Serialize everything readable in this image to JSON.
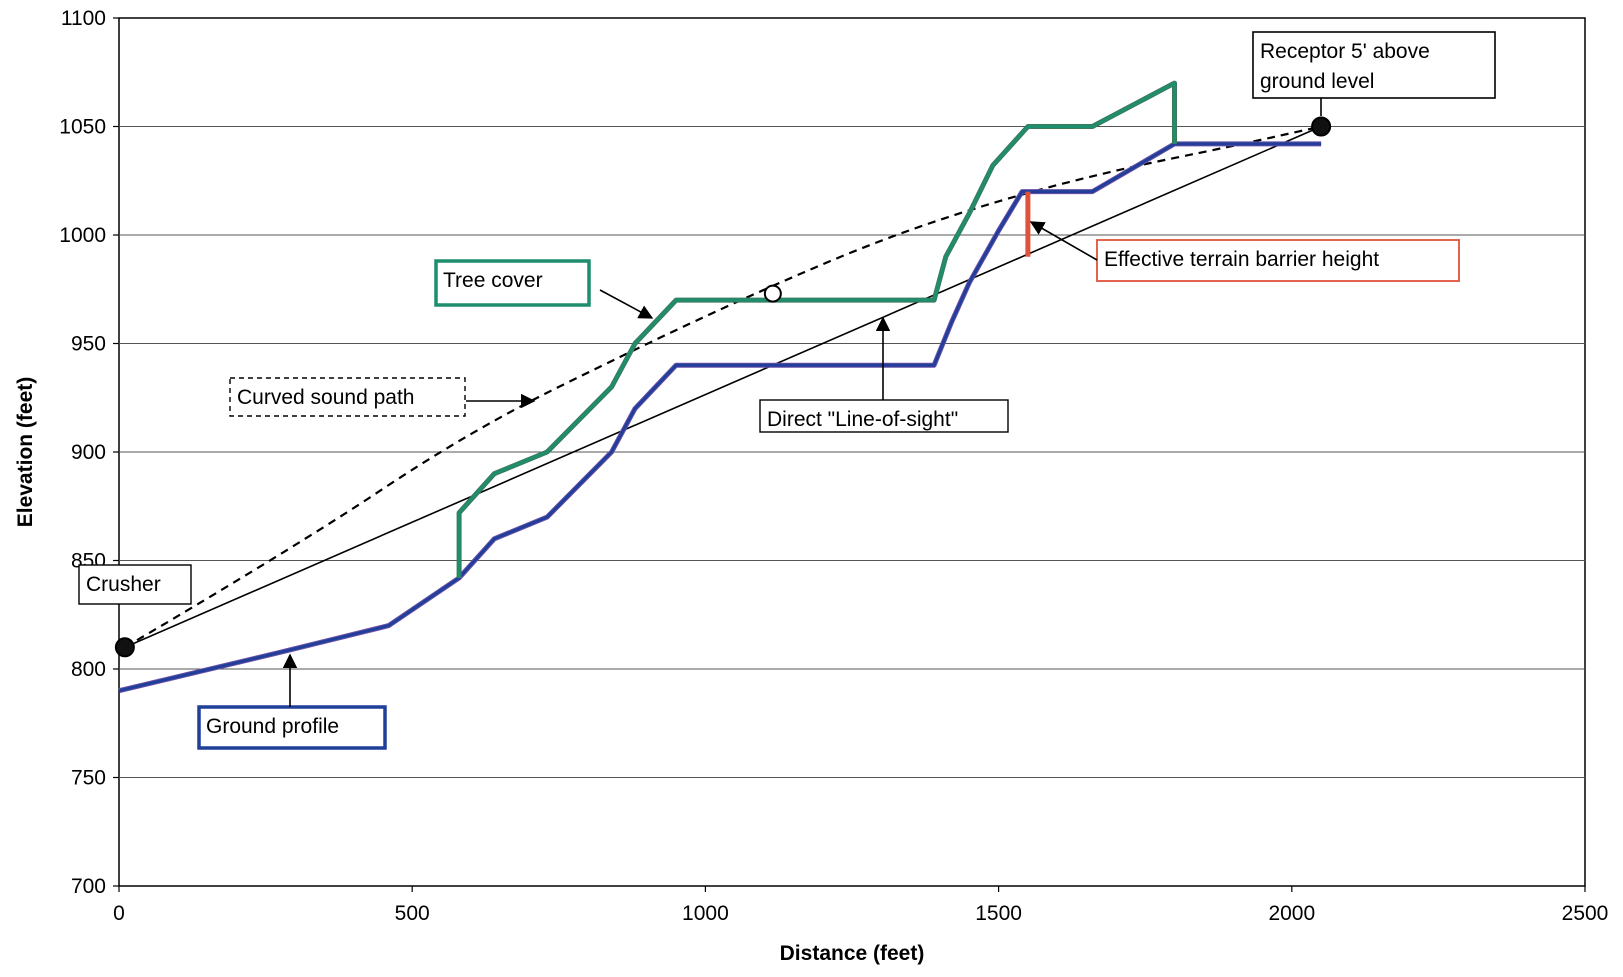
{
  "chart_data": {
    "type": "line",
    "title": "",
    "xlabel": "Distance (feet)",
    "ylabel": "Elevation (feet)",
    "xlim": [
      0,
      2500
    ],
    "ylim": [
      700,
      1100
    ],
    "x_ticks": [
      "0",
      "500",
      "1000",
      "1500",
      "2000",
      "2500"
    ],
    "y_ticks": [
      "700",
      "750",
      "800",
      "850",
      "900",
      "950",
      "1000",
      "1050",
      "1100"
    ],
    "grid": "horizontal",
    "colors": {
      "ground": "#1f3f99",
      "ground_outer": "#6a4fa8",
      "tree": "#1e8e6e",
      "tree_outer": "#3a7a5a",
      "barrier": "#e0533a",
      "line": "#000000"
    },
    "series": [
      {
        "name": "Ground profile",
        "points": [
          [
            0,
            790
          ],
          [
            280,
            808
          ],
          [
            460,
            820
          ],
          [
            580,
            842
          ],
          [
            640,
            860
          ],
          [
            730,
            870
          ],
          [
            840,
            900
          ],
          [
            880,
            920
          ],
          [
            950,
            940
          ],
          [
            1390,
            940
          ],
          [
            1420,
            960
          ],
          [
            1450,
            978
          ],
          [
            1500,
            1002
          ],
          [
            1540,
            1020
          ],
          [
            1660,
            1020
          ],
          [
            1800,
            1042
          ],
          [
            2050,
            1042
          ]
        ]
      },
      {
        "name": "Tree cover",
        "points": [
          [
            580,
            842
          ],
          [
            580,
            872
          ],
          [
            640,
            890
          ],
          [
            730,
            900
          ],
          [
            840,
            930
          ],
          [
            880,
            950
          ],
          [
            950,
            970
          ],
          [
            1390,
            970
          ],
          [
            1410,
            990
          ],
          [
            1450,
            1010
          ],
          [
            1490,
            1032
          ],
          [
            1550,
            1050
          ],
          [
            1660,
            1050
          ],
          [
            1800,
            1070
          ],
          [
            1800,
            1042
          ]
        ]
      },
      {
        "name": "Direct \"Line-of-sight\"",
        "points": [
          [
            10,
            810
          ],
          [
            2050,
            1050
          ]
        ]
      },
      {
        "name": "Curved sound path",
        "points": [
          [
            10,
            810
          ],
          [
            300,
            856
          ],
          [
            600,
            910
          ],
          [
            900,
            950
          ],
          [
            1100,
            975
          ],
          [
            1300,
            998
          ],
          [
            1500,
            1016
          ],
          [
            1700,
            1030
          ],
          [
            1900,
            1041
          ],
          [
            2050,
            1050
          ]
        ]
      },
      {
        "name": "Effective terrain barrier height",
        "points": [
          [
            1550,
            990
          ],
          [
            1550,
            1020
          ]
        ]
      }
    ],
    "markers": [
      {
        "name": "Crusher",
        "x": 10,
        "y": 810,
        "fill": "filled"
      },
      {
        "name": "Receptor",
        "x": 2050,
        "y": 1050,
        "fill": "filled"
      },
      {
        "name": "Tangent point",
        "x": 1115,
        "y": 973,
        "fill": "open"
      }
    ],
    "annotations": [
      {
        "id": "receptor",
        "lines": [
          "Receptor 5' above",
          "ground level"
        ]
      },
      {
        "id": "barrier",
        "lines": [
          "Effective terrain barrier height"
        ]
      },
      {
        "id": "tree",
        "lines": [
          "Tree cover"
        ]
      },
      {
        "id": "curved",
        "lines": [
          "Curved sound path"
        ]
      },
      {
        "id": "los",
        "lines": [
          "Direct \"Line-of-sight\""
        ]
      },
      {
        "id": "crusher",
        "lines": [
          "Crusher"
        ]
      },
      {
        "id": "ground",
        "lines": [
          "Ground profile"
        ]
      }
    ]
  }
}
